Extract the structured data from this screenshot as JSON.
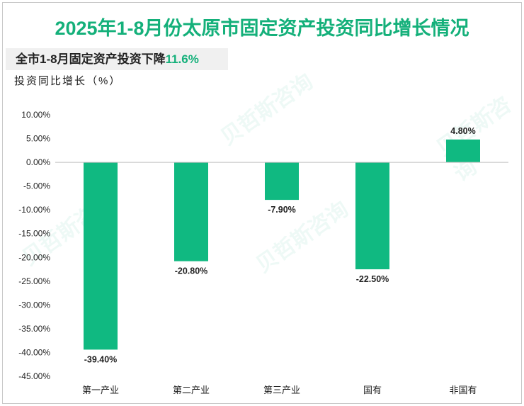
{
  "title": "2025年1-8月份太原市固定资产投资同比增长情况",
  "note": {
    "prefix": "全市1-8月固定资产投资下降",
    "value": "11.6%"
  },
  "chart_data": {
    "type": "bar",
    "title": "2025年1-8月份太原市固定资产投资同比增长情况",
    "ylabel": "投资同比增长（%）",
    "categories": [
      "第一产业",
      "第二产业",
      "第三产业",
      "国有",
      "非国有"
    ],
    "values": [
      -39.4,
      -20.8,
      -7.9,
      -22.5,
      4.8
    ],
    "data_labels": [
      "-39.40%",
      "-20.80%",
      "-7.90%",
      "-22.50%",
      "4.80%"
    ],
    "ylim": [
      -45,
      10
    ],
    "yticks": [
      "10.00%",
      "5.00%",
      "0.00%",
      "-5.00%",
      "-10.00%",
      "-15.00%",
      "-20.00%",
      "-25.00%",
      "-30.00%",
      "-35.00%",
      "-40.00%",
      "-45.00%"
    ],
    "bar_color": "#10b981"
  },
  "watermark": "贝哲斯咨询"
}
